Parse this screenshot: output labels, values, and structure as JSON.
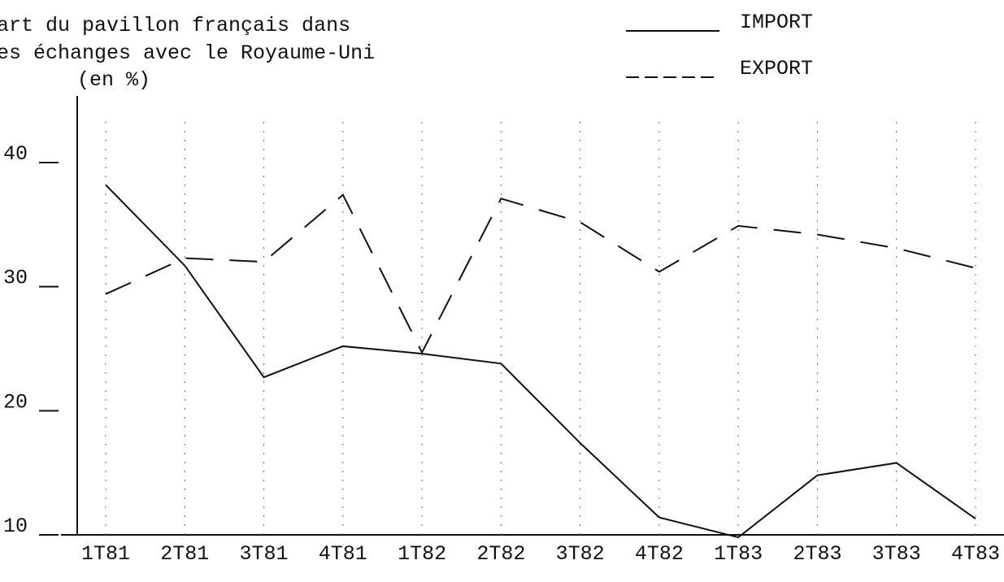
{
  "chart_data": {
    "type": "line",
    "title_lines": [
      "art du pavillon français dans",
      "es échanges avec le Royaume-Uni"
    ],
    "unit_label": "(en %)",
    "categories": [
      "1T81",
      "2T81",
      "3T81",
      "4T81",
      "1T82",
      "2T82",
      "3T82",
      "4T82",
      "1T83",
      "2T83",
      "3T83",
      "4T83"
    ],
    "series": [
      {
        "name": "IMPORT",
        "color": "#111111",
        "linestyle": "solid",
        "values": [
          38.2,
          31.7,
          22.7,
          25.2,
          24.6,
          23.8,
          17.4,
          11.4,
          9.8,
          14.8,
          15.8,
          11.3
        ]
      },
      {
        "name": "EXPORT",
        "color": "#111111",
        "linestyle": "dashed",
        "values": [
          29.4,
          32.3,
          32.0,
          37.4,
          24.7,
          37.1,
          35.2,
          31.2,
          34.9,
          34.2,
          33.1,
          31.5
        ]
      }
    ],
    "ylim": [
      10,
      45
    ],
    "yticks": [
      10,
      20,
      30,
      40
    ],
    "grid": true
  }
}
